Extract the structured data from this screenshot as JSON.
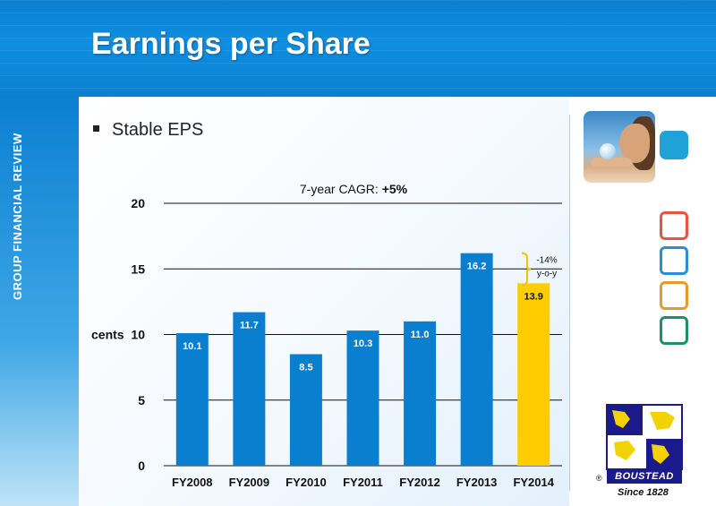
{
  "slide": {
    "title": "Earnings per Share",
    "side_label": "GROUP FINANCIAL REVIEW",
    "bullet": "Stable EPS",
    "logo_text": "BOUSTEAD",
    "logo_reg": "®",
    "logo_since": "Since 1828",
    "colors": {
      "header": "#0a7fd0",
      "bar": "#0a7fd0",
      "highlight": "#ffcc00",
      "square_red": "#e8553e",
      "square_blue": "#2a8fd6",
      "square_orange": "#e89a2a",
      "square_green": "#1f8f6a"
    }
  },
  "chart_data": {
    "type": "bar",
    "title": "",
    "categories": [
      "FY2008",
      "FY2009",
      "FY2010",
      "FY2011",
      "FY2012",
      "FY2013",
      "FY2014"
    ],
    "values": [
      10.1,
      11.7,
      8.5,
      10.3,
      11.0,
      16.2,
      13.9
    ],
    "value_labels": [
      "10.1",
      "11.7",
      "8.5",
      "10.3",
      "11.0",
      "16.2",
      "13.9"
    ],
    "highlight_index": 6,
    "yticks": [
      "0",
      "5",
      "10",
      "15",
      "20"
    ],
    "ytick_values": [
      0,
      5,
      10,
      15,
      20
    ],
    "ylabel": "cents",
    "ylim": [
      0,
      20
    ],
    "grid": true,
    "annotations": {
      "cagr_prefix": "7-year CAGR: ",
      "cagr_value": "+5%",
      "change_value": "-14%",
      "change_unit": "y-o-y"
    }
  }
}
